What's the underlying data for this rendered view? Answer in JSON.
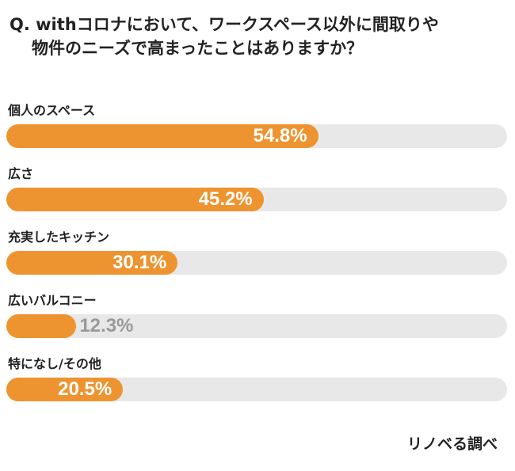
{
  "chart_data": {
    "type": "bar",
    "orientation": "horizontal",
    "title_line1": "Q. withコロナにおいて、ワークスペース以外に間取りや",
    "title_line2": "物件のニーズで高まったことはありますか？",
    "categories": [
      "個人のスペース",
      "広さ",
      "充実したキッチン",
      "広いバルコニー",
      "特になし/その他"
    ],
    "values": [
      54.8,
      45.2,
      30.1,
      12.3,
      20.5
    ],
    "data_labels": [
      "54.8%",
      "45.2%",
      "30.1%",
      "12.3%",
      "20.5%"
    ],
    "unit": "%",
    "grid": false,
    "bar_color": "#ed9430",
    "track_color": "#e8e8e8",
    "source": "リノベる調べ"
  }
}
